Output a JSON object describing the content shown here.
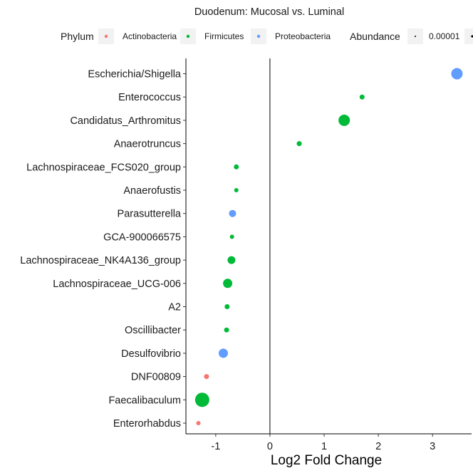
{
  "chart_data": {
    "type": "scatter",
    "title": "Duodenum: Mucosal vs. Luminal",
    "xlabel": "Log2 Fold Change",
    "ylabel": "",
    "xlim": [
      -1.55,
      3.72
    ],
    "xticks": [
      -1,
      0,
      1,
      2,
      3
    ],
    "xtick_labels": [
      "-1",
      "0",
      "1",
      "2",
      "3"
    ],
    "grid": false,
    "legend_position": "top",
    "legend": {
      "phylum_title": "Phylum",
      "phylum_items": [
        {
          "label": "Actinobacteria",
          "color": "#f8766d"
        },
        {
          "label": "Firmicutes",
          "color": "#00ba38"
        },
        {
          "label": "Proteobacteria",
          "color": "#619cff"
        }
      ],
      "abundance_title": "Abundance",
      "abundance_items": [
        {
          "label": "0.00001",
          "size": 1
        }
      ]
    },
    "categories": [
      "Escherichia/Shigella",
      "Enterococcus",
      "Candidatus_Arthromitus",
      "Anaerotruncus",
      "Lachnospiraceae_FCS020_group",
      "Anaerofustis",
      "Parasutterella",
      "GCA-900066575",
      "Lachnospiraceae_NK4A136_group",
      "Lachnospiraceae_UCG-006",
      "A2",
      "Oscillibacter",
      "Desulfovibrio",
      "DNF00809",
      "Faecalibaculum",
      "Enterorhabdus"
    ],
    "points": [
      {
        "genus": "Escherichia/Shigella",
        "log2fc": 3.45,
        "phylum": "Proteobacteria",
        "size": 8
      },
      {
        "genus": "Enterococcus",
        "log2fc": 1.7,
        "phylum": "Firmicutes",
        "size": 3.5
      },
      {
        "genus": "Candidatus_Arthromitus",
        "log2fc": 1.37,
        "phylum": "Firmicutes",
        "size": 8
      },
      {
        "genus": "Anaerotruncus",
        "log2fc": 0.54,
        "phylum": "Firmicutes",
        "size": 3.5
      },
      {
        "genus": "Lachnospiraceae_FCS020_group",
        "log2fc": -0.62,
        "phylum": "Firmicutes",
        "size": 3.5
      },
      {
        "genus": "Anaerofustis",
        "log2fc": -0.62,
        "phylum": "Firmicutes",
        "size": 3
      },
      {
        "genus": "Parasutterella",
        "log2fc": -0.69,
        "phylum": "Proteobacteria",
        "size": 5
      },
      {
        "genus": "GCA-900066575",
        "log2fc": -0.7,
        "phylum": "Firmicutes",
        "size": 3
      },
      {
        "genus": "Lachnospiraceae_NK4A136_group",
        "log2fc": -0.71,
        "phylum": "Firmicutes",
        "size": 5.5
      },
      {
        "genus": "Lachnospiraceae_UCG-006",
        "log2fc": -0.78,
        "phylum": "Firmicutes",
        "size": 6.5
      },
      {
        "genus": "A2",
        "log2fc": -0.79,
        "phylum": "Firmicutes",
        "size": 3.5
      },
      {
        "genus": "Oscillibacter",
        "log2fc": -0.8,
        "phylum": "Firmicutes",
        "size": 3.5
      },
      {
        "genus": "Desulfovibrio",
        "log2fc": -0.86,
        "phylum": "Proteobacteria",
        "size": 6.5
      },
      {
        "genus": "DNF00809",
        "log2fc": -1.17,
        "phylum": "Actinobacteria",
        "size": 3.5
      },
      {
        "genus": "Faecalibaculum",
        "log2fc": -1.25,
        "phylum": "Firmicutes",
        "size": 10
      },
      {
        "genus": "Enterorhabdus",
        "log2fc": -1.32,
        "phylum": "Actinobacteria",
        "size": 3
      }
    ]
  }
}
